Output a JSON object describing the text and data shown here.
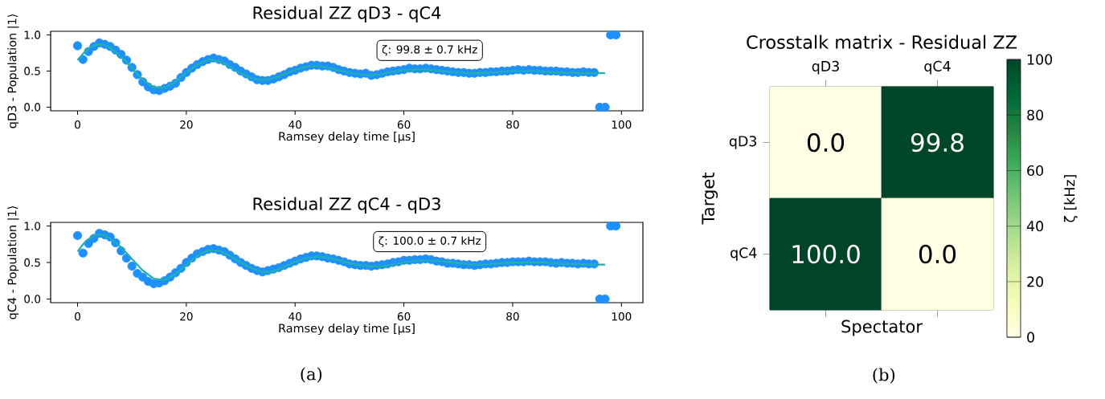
{
  "chart_data": [
    {
      "type": "scatter",
      "title": "Residual ZZ qD3 - qC4",
      "xlabel": "Ramsey delay time [µs]",
      "ylabel": "qD3 - Population |1⟩",
      "xlim": [
        -4.95,
        103.95
      ],
      "ylim": [
        -0.05,
        1.05
      ],
      "xticks": [
        0,
        20,
        40,
        60,
        80,
        100
      ],
      "yticks": [
        {
          "value": 0,
          "label": "0.0"
        },
        {
          "value": 0.5,
          "label": "0.5"
        },
        {
          "value": 1,
          "label": "1.0"
        }
      ],
      "annotations": [
        "ζ: 99.8 ± 0.7 kHz"
      ],
      "series": [
        {
          "type": "scatter",
          "marker": "circle",
          "color": "#1e90ff",
          "x": [
            0,
            1,
            2,
            3,
            4,
            5,
            6,
            7,
            8,
            9,
            10,
            11,
            12,
            13,
            14,
            15,
            16,
            17,
            18,
            19,
            20,
            21,
            22,
            23,
            24,
            25,
            26,
            27,
            28,
            29,
            30,
            31,
            32,
            33,
            34,
            35,
            36,
            37,
            38,
            39,
            40,
            41,
            42,
            43,
            44,
            45,
            46,
            47,
            48,
            49,
            50,
            51,
            52,
            53,
            54,
            55,
            56,
            57,
            58,
            59,
            60,
            61,
            62,
            63,
            64,
            65,
            66,
            67,
            68,
            69,
            70,
            71,
            72,
            73,
            74,
            75,
            76,
            77,
            78,
            79,
            80,
            81,
            82,
            83,
            84,
            85,
            86,
            87,
            88,
            89,
            90,
            91,
            92,
            93,
            94,
            95,
            96,
            97,
            98,
            99
          ],
          "values": [
            0.85,
            0.66,
            0.77,
            0.84,
            0.89,
            0.87,
            0.84,
            0.79,
            0.73,
            0.65,
            0.55,
            0.45,
            0.35,
            0.28,
            0.24,
            0.23,
            0.26,
            0.29,
            0.33,
            0.41,
            0.48,
            0.54,
            0.59,
            0.63,
            0.66,
            0.68,
            0.66,
            0.64,
            0.59,
            0.55,
            0.5,
            0.46,
            0.42,
            0.38,
            0.37,
            0.37,
            0.39,
            0.42,
            0.45,
            0.49,
            0.51,
            0.54,
            0.56,
            0.58,
            0.58,
            0.57,
            0.57,
            0.55,
            0.52,
            0.5,
            0.48,
            0.47,
            0.46,
            0.47,
            0.44,
            0.45,
            0.47,
            0.49,
            0.5,
            0.51,
            0.52,
            0.54,
            0.53,
            0.53,
            0.54,
            0.53,
            0.52,
            0.51,
            0.5,
            0.49,
            0.48,
            0.48,
            0.47,
            0.47,
            0.48,
            0.48,
            0.49,
            0.49,
            0.5,
            0.5,
            0.51,
            0.52,
            0.51,
            0.52,
            0.51,
            0.51,
            0.5,
            0.5,
            0.5,
            0.49,
            0.49,
            0.48,
            0.48,
            0.49,
            0.48,
            0.48,
            0.0,
            0.0,
            1.0,
            1.0
          ]
        },
        {
          "type": "line",
          "color": "#20b2aa",
          "x": [
            0,
            1,
            2,
            3,
            4,
            5,
            6,
            8,
            10,
            12,
            14,
            16,
            18,
            20,
            22,
            24,
            26,
            28,
            30,
            32,
            34,
            36,
            38,
            40,
            42,
            44,
            46,
            48,
            50,
            52,
            54,
            56,
            58,
            60,
            62,
            64,
            66,
            68,
            70,
            72,
            74,
            76,
            78,
            80,
            82,
            84,
            86,
            88,
            90,
            92,
            94,
            97
          ],
          "values": [
            0.65,
            0.74,
            0.81,
            0.86,
            0.87,
            0.86,
            0.82,
            0.7,
            0.54,
            0.38,
            0.27,
            0.27,
            0.35,
            0.48,
            0.59,
            0.66,
            0.64,
            0.56,
            0.47,
            0.4,
            0.37,
            0.4,
            0.46,
            0.52,
            0.56,
            0.57,
            0.55,
            0.51,
            0.48,
            0.45,
            0.44,
            0.46,
            0.49,
            0.51,
            0.52,
            0.52,
            0.51,
            0.49,
            0.48,
            0.47,
            0.47,
            0.48,
            0.49,
            0.5,
            0.5,
            0.5,
            0.49,
            0.48,
            0.48,
            0.47,
            0.47,
            0.47
          ]
        }
      ]
    },
    {
      "type": "scatter",
      "title": "Residual ZZ qC4 - qD3",
      "xlabel": "Ramsey delay time [µs]",
      "ylabel": "qC4 - Population |1⟩",
      "xlim": [
        -4.95,
        103.95
      ],
      "ylim": [
        -0.05,
        1.05
      ],
      "xticks": [
        0,
        20,
        40,
        60,
        80,
        100
      ],
      "yticks": [
        {
          "value": 0,
          "label": "0.0"
        },
        {
          "value": 0.5,
          "label": "0.5"
        },
        {
          "value": 1,
          "label": "1.0"
        }
      ],
      "annotations": [
        "ζ: 100.0 ± 0.7 kHz",
        "(a)"
      ],
      "series": [
        {
          "type": "scatter",
          "marker": "circle",
          "color": "#1e90ff",
          "x": [
            0,
            1,
            2,
            3,
            4,
            5,
            6,
            7,
            8,
            9,
            10,
            11,
            12,
            13,
            14,
            15,
            16,
            17,
            18,
            19,
            20,
            21,
            22,
            23,
            24,
            25,
            26,
            27,
            28,
            29,
            30,
            31,
            32,
            33,
            34,
            35,
            36,
            37,
            38,
            39,
            40,
            41,
            42,
            43,
            44,
            45,
            46,
            47,
            48,
            49,
            50,
            51,
            52,
            53,
            54,
            55,
            56,
            57,
            58,
            59,
            60,
            61,
            62,
            63,
            64,
            65,
            66,
            67,
            68,
            69,
            70,
            71,
            72,
            73,
            74,
            75,
            76,
            77,
            78,
            79,
            80,
            81,
            82,
            83,
            84,
            85,
            86,
            87,
            88,
            89,
            90,
            91,
            92,
            93,
            94,
            95,
            96,
            97,
            98,
            99
          ],
          "values": [
            0.87,
            0.63,
            0.76,
            0.83,
            0.9,
            0.88,
            0.85,
            0.77,
            0.66,
            0.56,
            0.45,
            0.35,
            0.3,
            0.24,
            0.21,
            0.22,
            0.25,
            0.3,
            0.36,
            0.42,
            0.5,
            0.56,
            0.62,
            0.65,
            0.68,
            0.69,
            0.67,
            0.65,
            0.6,
            0.55,
            0.5,
            0.46,
            0.42,
            0.39,
            0.37,
            0.39,
            0.41,
            0.43,
            0.46,
            0.49,
            0.52,
            0.55,
            0.57,
            0.59,
            0.59,
            0.58,
            0.56,
            0.55,
            0.53,
            0.51,
            0.48,
            0.47,
            0.46,
            0.46,
            0.45,
            0.46,
            0.47,
            0.48,
            0.5,
            0.51,
            0.53,
            0.53,
            0.54,
            0.54,
            0.55,
            0.54,
            0.52,
            0.51,
            0.49,
            0.49,
            0.48,
            0.47,
            0.47,
            0.46,
            0.47,
            0.48,
            0.48,
            0.49,
            0.5,
            0.5,
            0.51,
            0.51,
            0.51,
            0.52,
            0.51,
            0.51,
            0.51,
            0.5,
            0.49,
            0.5,
            0.49,
            0.49,
            0.48,
            0.49,
            0.48,
            0.48,
            0.0,
            0.0,
            1.0,
            1.0
          ]
        },
        {
          "type": "line",
          "color": "#20b2aa",
          "x": [
            0,
            1,
            2,
            3,
            4,
            5,
            6,
            8,
            10,
            12,
            14,
            16,
            18,
            20,
            22,
            24,
            26,
            28,
            30,
            32,
            34,
            36,
            38,
            40,
            42,
            44,
            46,
            48,
            50,
            52,
            54,
            56,
            58,
            60,
            62,
            64,
            66,
            68,
            70,
            72,
            74,
            76,
            78,
            80,
            82,
            84,
            86,
            88,
            90,
            92,
            94,
            97
          ],
          "values": [
            0.65,
            0.75,
            0.82,
            0.87,
            0.88,
            0.87,
            0.83,
            0.71,
            0.55,
            0.39,
            0.28,
            0.26,
            0.34,
            0.47,
            0.59,
            0.67,
            0.66,
            0.59,
            0.5,
            0.42,
            0.37,
            0.38,
            0.44,
            0.51,
            0.56,
            0.58,
            0.57,
            0.53,
            0.49,
            0.46,
            0.45,
            0.45,
            0.47,
            0.5,
            0.52,
            0.53,
            0.52,
            0.51,
            0.49,
            0.48,
            0.47,
            0.48,
            0.49,
            0.5,
            0.5,
            0.5,
            0.5,
            0.49,
            0.48,
            0.48,
            0.47,
            0.47
          ]
        }
      ]
    },
    {
      "type": "heatmap",
      "title": "Crosstalk matrix - Residual ZZ",
      "xlabel": "Spectator",
      "ylabel": "Target",
      "clabel": "ζ [kHz]",
      "categories": [
        "qD3",
        "qC4"
      ],
      "y_categories": [
        "qD3",
        "qC4"
      ],
      "cells": [
        [
          0.0,
          99.8
        ],
        [
          100.0,
          0.0
        ]
      ],
      "cell_labels": [
        [
          "0.0",
          "99.8"
        ],
        [
          "100.0",
          "0.0"
        ]
      ],
      "clim": [
        0,
        100
      ],
      "cticks": [
        0,
        20,
        40,
        60,
        80,
        100
      ],
      "annotations": [
        "(b)"
      ]
    }
  ]
}
